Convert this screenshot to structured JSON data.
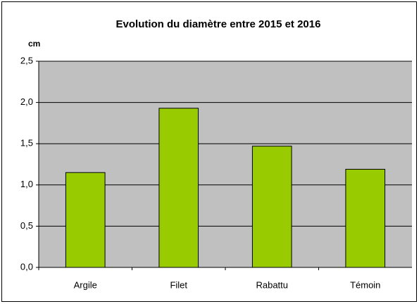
{
  "chart_data": {
    "type": "bar",
    "title": "Evolution du diamètre entre 2015 et 2016",
    "y_label": "cm",
    "categories": [
      "Argile",
      "Filet",
      "Rabattu",
      "Témoin"
    ],
    "values": [
      1.15,
      1.93,
      1.47,
      1.19
    ],
    "color": "#99cc00",
    "ylim": [
      0,
      2.5
    ],
    "yticks": [
      {
        "value": 0,
        "label": "0,0"
      },
      {
        "value": 0.5,
        "label": "0,5"
      },
      {
        "value": 1,
        "label": "1,0"
      },
      {
        "value": 1.5,
        "label": "1,5"
      },
      {
        "value": 2,
        "label": "2,0"
      },
      {
        "value": 2.5,
        "label": "2,5"
      }
    ],
    "grid": true
  }
}
